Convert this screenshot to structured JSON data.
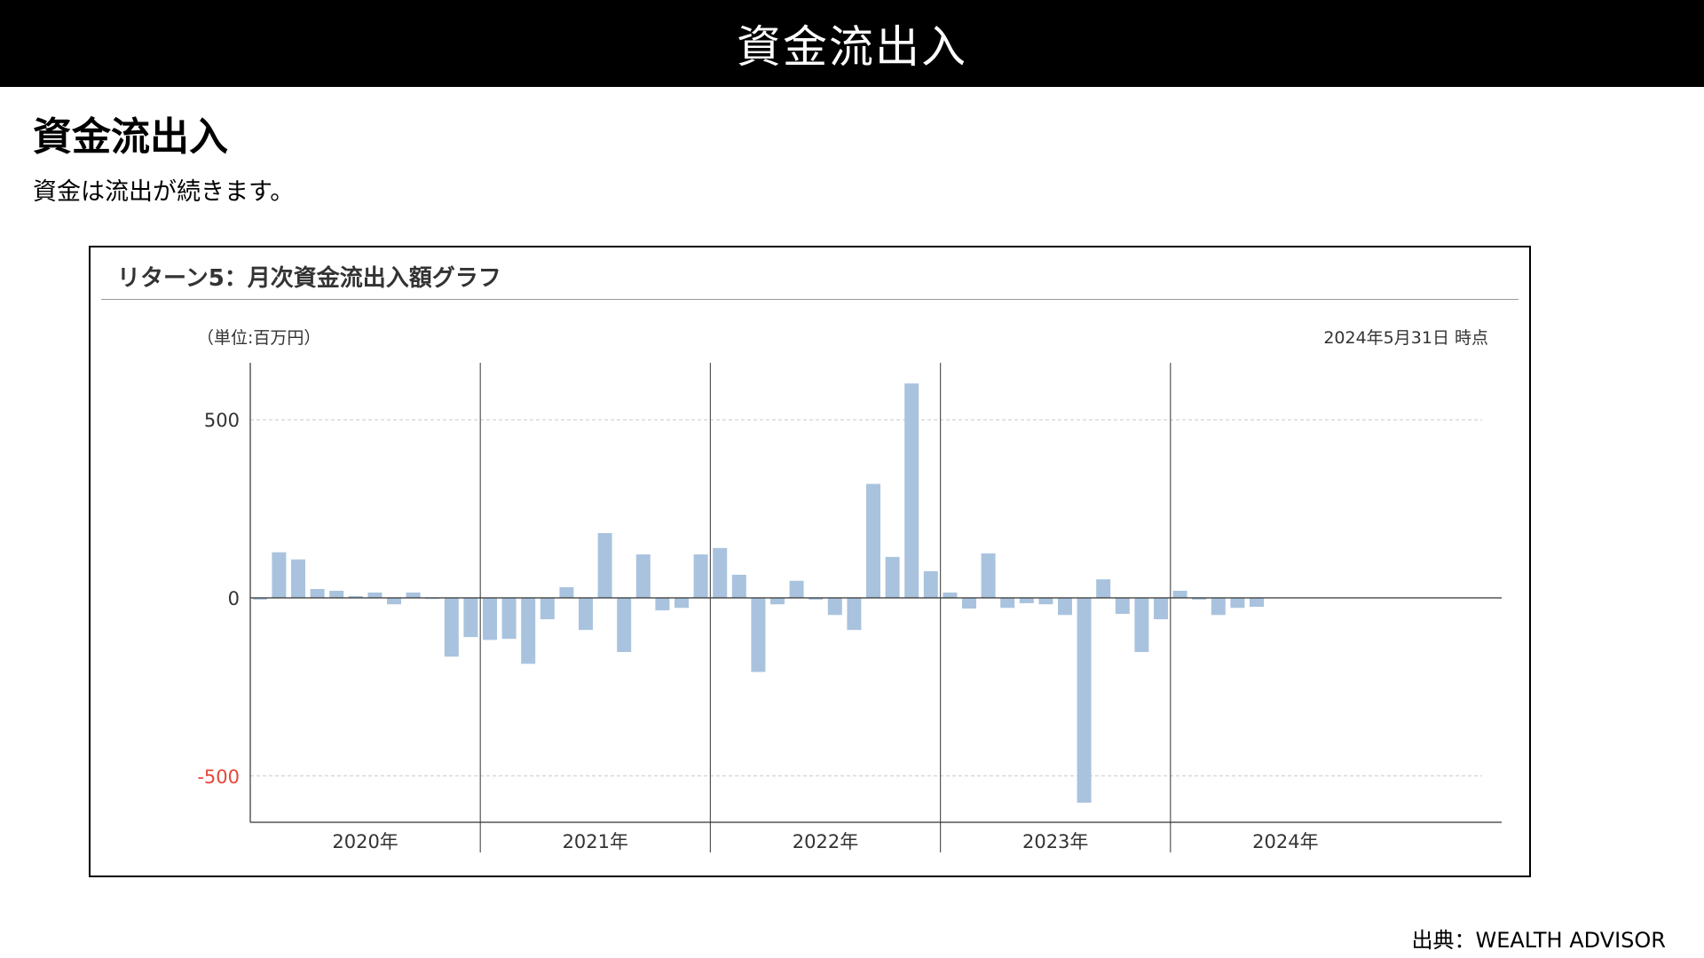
{
  "header": {
    "title": "資金流出入"
  },
  "page": {
    "title": "資金流出入",
    "subtitle": "資金は流出が続きます。",
    "source": "出典：WEALTH ADVISOR"
  },
  "chart_data": {
    "type": "bar",
    "title": "リターン5：月次資金流出入額グラフ",
    "unit_label": "（単位:百万円）",
    "date_label": "2024年5月31日 時点",
    "xlabel": "",
    "ylabel": "",
    "ylim": [
      -630,
      660
    ],
    "yticks": [
      {
        "value": 500,
        "label": "500",
        "color": "#333333"
      },
      {
        "value": 0,
        "label": "0",
        "color": "#333333"
      },
      {
        "value": -500,
        "label": "-500",
        "color": "#e8463a"
      }
    ],
    "grid": true,
    "legend": "none",
    "bar_color": "#a9c3de",
    "years": [
      "2020年",
      "2021年",
      "2022年",
      "2023年",
      "2024年"
    ],
    "months_per_year": [
      12,
      12,
      12,
      12,
      5
    ],
    "values": [
      -5,
      128,
      108,
      25,
      20,
      5,
      15,
      -18,
      15,
      -3,
      -165,
      -110,
      -118,
      -115,
      -185,
      -60,
      30,
      -90,
      182,
      -152,
      122,
      -35,
      -28,
      122,
      140,
      65,
      -208,
      -18,
      48,
      -5,
      -48,
      -90,
      320,
      115,
      602,
      75,
      15,
      -30,
      125,
      -28,
      -15,
      -18,
      -48,
      -575,
      52,
      -45,
      -152,
      -60,
      20,
      -5,
      -48,
      -28,
      -25
    ]
  }
}
